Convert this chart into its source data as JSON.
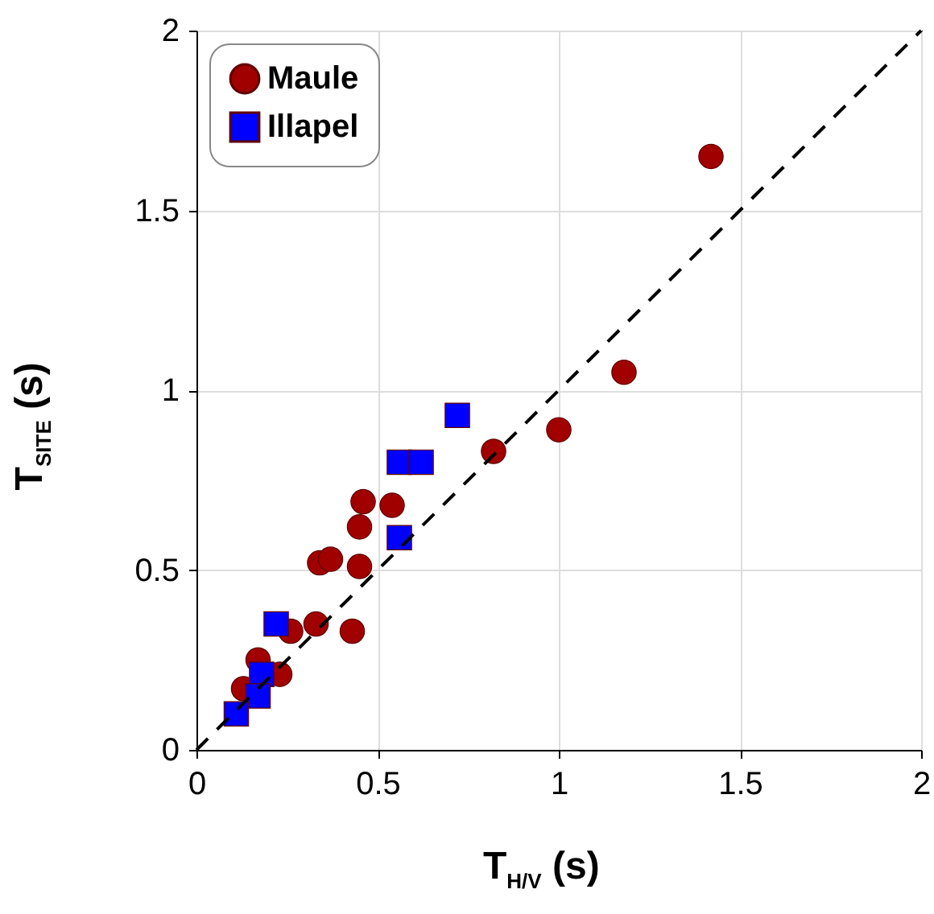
{
  "chart_data": {
    "type": "scatter",
    "xlabel": "T$_{H/V}$ (s)",
    "ylabel": "T$_{SITE}$ (s)",
    "xlim": [
      0,
      2
    ],
    "ylim": [
      0,
      2
    ],
    "xticks": [
      0,
      0.5,
      1,
      1.5,
      2
    ],
    "yticks": [
      0,
      0.5,
      1,
      1.5,
      2
    ],
    "grid": true,
    "legend": "top left",
    "series": [
      {
        "name": "Maule",
        "color": "#a00000",
        "marker": "circle",
        "x": [
          0.46,
          0.54,
          0.45,
          0.34,
          0.37,
          0.45,
          0.82,
          0.33,
          0.26,
          0.43,
          0.17,
          0.23,
          0.13,
          1.42,
          1.18,
          1.0
        ],
        "values": [
          0.69,
          0.68,
          0.62,
          0.52,
          0.53,
          0.51,
          0.83,
          0.35,
          0.33,
          0.33,
          0.25,
          0.21,
          0.17,
          1.65,
          1.05,
          0.89
        ]
      },
      {
        "name": "Illapel",
        "color": "#0000ff",
        "marker": "square",
        "x": [
          0.72,
          0.56,
          0.62,
          0.56,
          0.22,
          0.18,
          0.17,
          0.11
        ],
        "values": [
          0.93,
          0.8,
          0.8,
          0.59,
          0.35,
          0.21,
          0.15,
          0.1
        ]
      },
      {
        "type": "line",
        "color": "#000000",
        "line_style": "dashed",
        "marker": "none",
        "x": [
          0,
          2
        ],
        "values": [
          0,
          2
        ]
      }
    ]
  }
}
